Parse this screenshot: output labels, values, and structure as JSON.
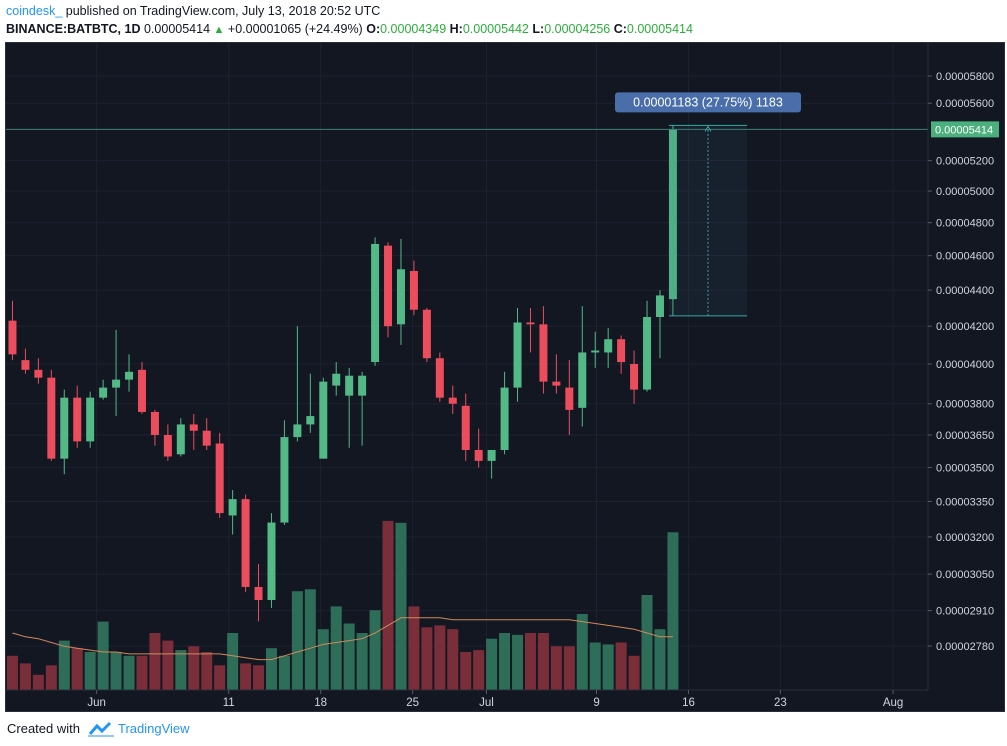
{
  "header": {
    "author": "coindesk_",
    "published_text": "published on TradingView.com, July 13, 2018 20:52 UTC",
    "symbol": "BINANCE:BATBTC, 1D",
    "last": "0.00005414",
    "change": "+0.00001065 (+24.49%)",
    "o_label": "O:",
    "o_value": "0.00004349",
    "h_label": "H:",
    "h_value": "0.00005442",
    "l_label": "L:",
    "l_value": "0.00004256",
    "c_label": "C:",
    "c_value": "0.00005414"
  },
  "footer": {
    "created_with": "Created with",
    "brand": "TradingView"
  },
  "colors": {
    "background": "#131722",
    "grid": "#1e2230",
    "up": "#53b987",
    "down": "#eb4d5c",
    "ma": "#d08a5a",
    "price_badge": "#4caf7e",
    "measure": "#4a6ea9"
  },
  "measure_label": "0.00001183 (27.75%) 1183",
  "price_badge": "0.00005414",
  "chart_data": {
    "type": "candlestick",
    "x_labels": [
      "Jun",
      "11",
      "18",
      "25",
      "Jul",
      "9",
      "16",
      "23",
      "Aug"
    ],
    "y_labels": [
      "0.00005800",
      "0.00005600",
      "0.00005414",
      "0.00005200",
      "0.00005000",
      "0.00004800",
      "0.00004600",
      "0.00004400",
      "0.00004200",
      "0.00004000",
      "0.00003800",
      "0.00003650",
      "0.00003500",
      "0.00003350",
      "0.00003200",
      "0.00003050",
      "0.00002910",
      "0.00002780"
    ],
    "y_log_scale": true,
    "candles": [
      {
        "o": 4230,
        "h": 4340,
        "l": 4020,
        "c": 4050
      },
      {
        "o": 4020,
        "h": 4080,
        "l": 3950,
        "c": 3970
      },
      {
        "o": 3970,
        "h": 4030,
        "l": 3900,
        "c": 3930
      },
      {
        "o": 3930,
        "h": 3970,
        "l": 3530,
        "c": 3540
      },
      {
        "o": 3540,
        "h": 3870,
        "l": 3470,
        "c": 3830
      },
      {
        "o": 3830,
        "h": 3890,
        "l": 3590,
        "c": 3620
      },
      {
        "o": 3620,
        "h": 3860,
        "l": 3590,
        "c": 3830
      },
      {
        "o": 3830,
        "h": 3920,
        "l": 3820,
        "c": 3880
      },
      {
        "o": 3880,
        "h": 4180,
        "l": 3740,
        "c": 3920
      },
      {
        "o": 3920,
        "h": 4050,
        "l": 3860,
        "c": 3960
      },
      {
        "o": 3970,
        "h": 4010,
        "l": 3750,
        "c": 3760
      },
      {
        "o": 3760,
        "h": 3770,
        "l": 3600,
        "c": 3650
      },
      {
        "o": 3650,
        "h": 3700,
        "l": 3530,
        "c": 3550
      },
      {
        "o": 3560,
        "h": 3730,
        "l": 3550,
        "c": 3700
      },
      {
        "o": 3700,
        "h": 3750,
        "l": 3580,
        "c": 3670
      },
      {
        "o": 3670,
        "h": 3730,
        "l": 3580,
        "c": 3600
      },
      {
        "o": 3610,
        "h": 3660,
        "l": 3280,
        "c": 3300
      },
      {
        "o": 3290,
        "h": 3400,
        "l": 3210,
        "c": 3360
      },
      {
        "o": 3360,
        "h": 3380,
        "l": 2980,
        "c": 3000
      },
      {
        "o": 3000,
        "h": 3090,
        "l": 2870,
        "c": 2950
      },
      {
        "o": 2950,
        "h": 3300,
        "l": 2920,
        "c": 3260
      },
      {
        "o": 3260,
        "h": 3720,
        "l": 3250,
        "c": 3640
      },
      {
        "o": 3640,
        "h": 4200,
        "l": 3620,
        "c": 3700
      },
      {
        "o": 3700,
        "h": 3950,
        "l": 3660,
        "c": 3740
      },
      {
        "o": 3540,
        "h": 3930,
        "l": 3540,
        "c": 3910
      },
      {
        "o": 3890,
        "h": 4010,
        "l": 3840,
        "c": 3950
      },
      {
        "o": 3840,
        "h": 3980,
        "l": 3590,
        "c": 3940
      },
      {
        "o": 3840,
        "h": 3960,
        "l": 3600,
        "c": 3940
      },
      {
        "o": 4010,
        "h": 4710,
        "l": 3990,
        "c": 4670
      },
      {
        "o": 4660,
        "h": 4680,
        "l": 4140,
        "c": 4200
      },
      {
        "o": 4210,
        "h": 4700,
        "l": 4100,
        "c": 4520
      },
      {
        "o": 4510,
        "h": 4570,
        "l": 4260,
        "c": 4290
      },
      {
        "o": 4290,
        "h": 4300,
        "l": 4010,
        "c": 4030
      },
      {
        "o": 4030,
        "h": 4060,
        "l": 3810,
        "c": 3830
      },
      {
        "o": 3830,
        "h": 3890,
        "l": 3750,
        "c": 3800
      },
      {
        "o": 3790,
        "h": 3850,
        "l": 3530,
        "c": 3580
      },
      {
        "o": 3580,
        "h": 3680,
        "l": 3500,
        "c": 3530
      },
      {
        "o": 3530,
        "h": 3560,
        "l": 3450,
        "c": 3580
      },
      {
        "o": 3580,
        "h": 3960,
        "l": 3560,
        "c": 3880
      },
      {
        "o": 3880,
        "h": 4300,
        "l": 3810,
        "c": 4220
      },
      {
        "o": 4220,
        "h": 4300,
        "l": 4060,
        "c": 4210
      },
      {
        "o": 4210,
        "h": 4310,
        "l": 3850,
        "c": 3910
      },
      {
        "o": 3910,
        "h": 4050,
        "l": 3850,
        "c": 3890
      },
      {
        "o": 3880,
        "h": 4020,
        "l": 3650,
        "c": 3770
      },
      {
        "o": 3780,
        "h": 4310,
        "l": 3690,
        "c": 4060
      },
      {
        "o": 4060,
        "h": 4170,
        "l": 3980,
        "c": 4070
      },
      {
        "o": 4060,
        "h": 4190,
        "l": 3980,
        "c": 4130
      },
      {
        "o": 4130,
        "h": 4150,
        "l": 3950,
        "c": 4010
      },
      {
        "o": 4000,
        "h": 4070,
        "l": 3800,
        "c": 3870
      },
      {
        "o": 3870,
        "h": 4340,
        "l": 3860,
        "c": 4250
      },
      {
        "o": 4250,
        "h": 4400,
        "l": 4030,
        "c": 4370
      },
      {
        "o": 4349,
        "h": 5442,
        "l": 4256,
        "c": 5414
      }
    ],
    "volume_relative": [
      0.18,
      0.14,
      0.08,
      0.13,
      0.26,
      0.22,
      0.2,
      0.36,
      0.2,
      0.18,
      0.18,
      0.3,
      0.26,
      0.21,
      0.23,
      0.2,
      0.13,
      0.3,
      0.14,
      0.13,
      0.22,
      0.18,
      0.52,
      0.53,
      0.32,
      0.44,
      0.35,
      0.3,
      0.42,
      0.89,
      0.88,
      0.44,
      0.33,
      0.34,
      0.32,
      0.2,
      0.21,
      0.27,
      0.3,
      0.29,
      0.3,
      0.3,
      0.23,
      0.23,
      0.4,
      0.25,
      0.24,
      0.25,
      0.18,
      0.5,
      0.32,
      0.83
    ],
    "volume_ma_relative": [
      0.3,
      0.28,
      0.27,
      0.25,
      0.23,
      0.22,
      0.21,
      0.2,
      0.2,
      0.19,
      0.19,
      0.19,
      0.19,
      0.19,
      0.19,
      0.19,
      0.19,
      0.18,
      0.17,
      0.16,
      0.16,
      0.18,
      0.2,
      0.22,
      0.24,
      0.25,
      0.26,
      0.27,
      0.3,
      0.34,
      0.38,
      0.38,
      0.38,
      0.38,
      0.37,
      0.37,
      0.37,
      0.37,
      0.37,
      0.37,
      0.37,
      0.37,
      0.37,
      0.37,
      0.36,
      0.35,
      0.34,
      0.33,
      0.32,
      0.3,
      0.28,
      0.28
    ]
  }
}
